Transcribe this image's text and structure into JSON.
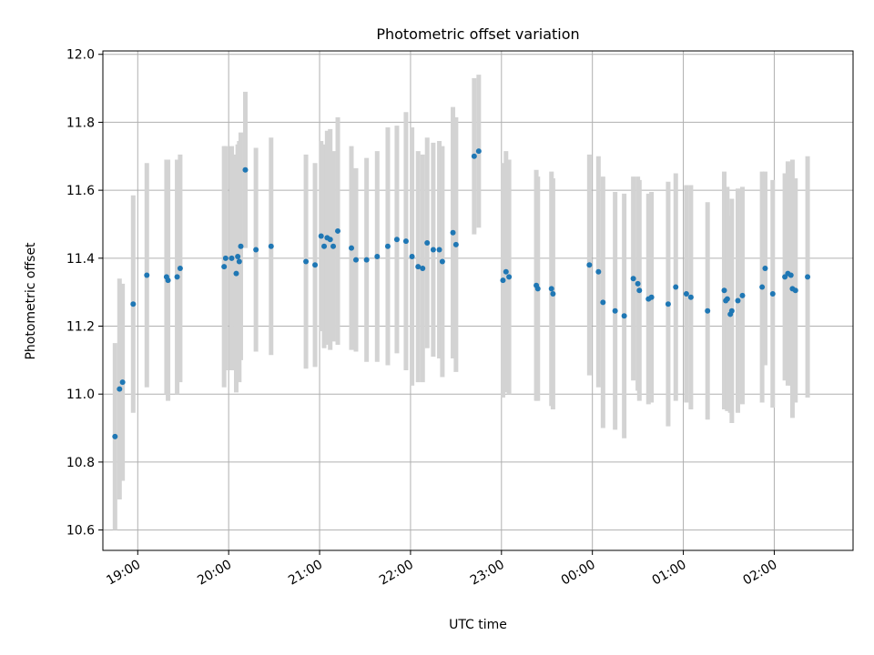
{
  "chart_data": {
    "type": "scatter",
    "title": "Photometric offset variation",
    "xlabel": "UTC time",
    "ylabel": "Photometric offset",
    "x_unit": "UTC time (hours of day, continuing past midnight)",
    "xlim": [
      "18:37",
      "02:52"
    ],
    "ylim": [
      10.54,
      12.01
    ],
    "x_ticks": [
      "19:00",
      "20:00",
      "21:00",
      "22:00",
      "23:00",
      "00:00",
      "01:00",
      "02:00"
    ],
    "y_ticks": [
      "10.6",
      "10.8",
      "11.0",
      "11.2",
      "11.4",
      "11.6",
      "11.8",
      "12.0"
    ],
    "grid": true,
    "colors": {
      "point": "#1f77b4",
      "error_bar": "#d3d3d3",
      "grid": "#b0b0b0"
    },
    "series": [
      {
        "x": [
          "18:45",
          "18:48",
          "18:50",
          "18:57",
          "19:06",
          "19:19",
          "19:20",
          "19:26",
          "19:28",
          "19:57",
          "19:58",
          "20:02",
          "20:05",
          "20:06",
          "20:07",
          "20:08",
          "20:11",
          "20:18",
          "20:28",
          "20:51",
          "20:57",
          "21:01",
          "21:03",
          "21:05",
          "21:07",
          "21:09",
          "21:12",
          "21:21",
          "21:24",
          "21:31",
          "21:38",
          "21:45",
          "21:51",
          "21:57",
          "22:01",
          "22:05",
          "22:08",
          "22:11",
          "22:15",
          "22:19",
          "22:21",
          "22:28",
          "22:30",
          "22:42",
          "22:45",
          "23:01",
          "23:03",
          "23:05",
          "23:23",
          "23:24",
          "23:33",
          "23:34",
          "23:58",
          "00:04",
          "00:07",
          "00:15",
          "00:21",
          "00:27",
          "00:30",
          "00:31",
          "00:37",
          "00:39",
          "00:50",
          "00:55",
          "01:02",
          "01:05",
          "01:16",
          "01:27",
          "01:28",
          "01:29",
          "01:31",
          "01:32",
          "01:36",
          "01:39",
          "01:52",
          "01:54",
          "01:59",
          "02:07",
          "02:09",
          "02:11",
          "02:12",
          "02:14",
          "02:22"
        ],
        "y": [
          10.875,
          11.015,
          11.035,
          11.265,
          11.35,
          11.345,
          11.335,
          11.345,
          11.37,
          11.375,
          11.4,
          11.4,
          11.355,
          11.405,
          11.39,
          11.435,
          11.66,
          11.425,
          11.435,
          11.39,
          11.38,
          11.465,
          11.435,
          11.46,
          11.455,
          11.435,
          11.48,
          11.43,
          11.395,
          11.395,
          11.405,
          11.435,
          11.455,
          11.45,
          11.405,
          11.375,
          11.37,
          11.445,
          11.425,
          11.425,
          11.39,
          11.475,
          11.44,
          11.7,
          11.715,
          11.335,
          11.36,
          11.345,
          11.32,
          11.31,
          11.31,
          11.295,
          11.38,
          11.36,
          11.27,
          11.245,
          11.23,
          11.34,
          11.325,
          11.305,
          11.28,
          11.285,
          11.265,
          11.315,
          11.295,
          11.285,
          11.245,
          11.305,
          11.275,
          11.28,
          11.235,
          11.245,
          11.275,
          11.29,
          11.315,
          11.37,
          11.295,
          11.345,
          11.355,
          11.35,
          11.31,
          11.305,
          11.345
        ],
        "err": [
          0.275,
          0.325,
          0.29,
          0.32,
          0.33,
          0.345,
          0.355,
          0.345,
          0.335,
          0.355,
          0.33,
          0.33,
          0.35,
          0.33,
          0.355,
          0.335,
          0.23,
          0.3,
          0.32,
          0.315,
          0.3,
          0.28,
          0.3,
          0.315,
          0.325,
          0.28,
          0.335,
          0.3,
          0.27,
          0.3,
          0.31,
          0.35,
          0.335,
          0.38,
          0.38,
          0.34,
          0.335,
          0.31,
          0.315,
          0.32,
          0.34,
          0.37,
          0.375,
          0.23,
          0.225,
          0.345,
          0.355,
          0.345,
          0.34,
          0.33,
          0.345,
          0.34,
          0.325,
          0.34,
          0.37,
          0.35,
          0.36,
          0.3,
          0.315,
          0.325,
          0.31,
          0.31,
          0.36,
          0.335,
          0.32,
          0.33,
          0.32,
          0.35,
          0.32,
          0.33,
          0.29,
          0.33,
          0.33,
          0.32,
          0.34,
          0.285,
          0.335,
          0.305,
          0.33,
          0.325,
          0.38,
          0.33,
          0.355
        ]
      }
    ]
  }
}
